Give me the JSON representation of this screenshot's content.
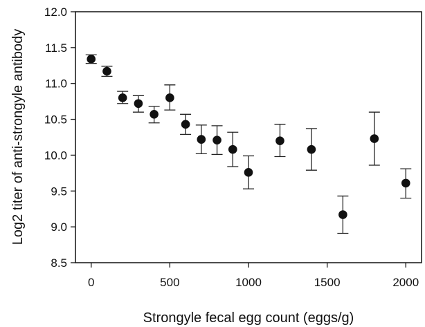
{
  "chart_data": {
    "type": "scatter",
    "title": "",
    "xlabel": "Strongyle fecal egg count (eggs/g)",
    "ylabel": "Log2 titer of anti-strongyle antibody",
    "xlim": [
      -100,
      2100
    ],
    "ylim": [
      8.5,
      12.0
    ],
    "xticks": [
      0,
      500,
      1000,
      1500,
      2000
    ],
    "yticks": [
      8.5,
      9.0,
      9.5,
      10.0,
      10.5,
      11.0,
      11.5,
      12.0
    ],
    "xtick_labels": [
      "0",
      "500",
      "1000",
      "1500",
      "2000"
    ],
    "ytick_labels": [
      "8.5",
      "9.0",
      "9.5",
      "10.0",
      "10.5",
      "11.0",
      "11.5",
      "12.0"
    ],
    "grid": false,
    "marker_color": "#111111",
    "error_bar_color": "#222222",
    "points": [
      {
        "x": 0,
        "y": 11.34,
        "ylow": 11.28,
        "yhigh": 11.4
      },
      {
        "x": 100,
        "y": 11.17,
        "ylow": 11.1,
        "yhigh": 11.24
      },
      {
        "x": 200,
        "y": 10.8,
        "ylow": 10.72,
        "yhigh": 10.89
      },
      {
        "x": 300,
        "y": 10.72,
        "ylow": 10.6,
        "yhigh": 10.83
      },
      {
        "x": 400,
        "y": 10.57,
        "ylow": 10.45,
        "yhigh": 10.68
      },
      {
        "x": 500,
        "y": 10.8,
        "ylow": 10.63,
        "yhigh": 10.98
      },
      {
        "x": 600,
        "y": 10.43,
        "ylow": 10.29,
        "yhigh": 10.57
      },
      {
        "x": 700,
        "y": 10.22,
        "ylow": 10.02,
        "yhigh": 10.42
      },
      {
        "x": 800,
        "y": 10.21,
        "ylow": 10.01,
        "yhigh": 10.41
      },
      {
        "x": 900,
        "y": 10.08,
        "ylow": 9.84,
        "yhigh": 10.32
      },
      {
        "x": 1000,
        "y": 9.76,
        "ylow": 9.53,
        "yhigh": 9.99
      },
      {
        "x": 1200,
        "y": 10.2,
        "ylow": 9.98,
        "yhigh": 10.43
      },
      {
        "x": 1400,
        "y": 10.08,
        "ylow": 9.79,
        "yhigh": 10.37
      },
      {
        "x": 1600,
        "y": 9.17,
        "ylow": 8.91,
        "yhigh": 9.43
      },
      {
        "x": 1800,
        "y": 10.23,
        "ylow": 9.86,
        "yhigh": 10.6
      },
      {
        "x": 2000,
        "y": 9.61,
        "ylow": 9.4,
        "yhigh": 9.81
      }
    ]
  }
}
